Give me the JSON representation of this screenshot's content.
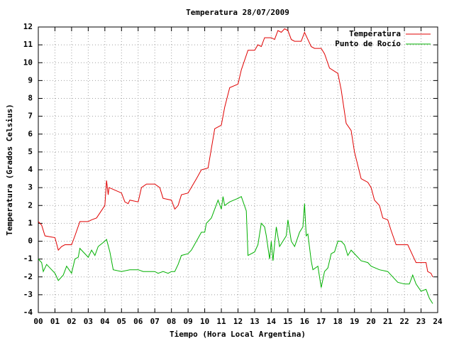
{
  "chart_data": {
    "type": "line",
    "title": "Temperatura 28/07/2009",
    "xlabel": "Tiempo (Hora Local Argentina)",
    "ylabel": "Temperatura (Grados Celsius)",
    "xlim": [
      0,
      24
    ],
    "ylim": [
      -4,
      12
    ],
    "xticks": [
      {
        "value": 0,
        "label": "00"
      },
      {
        "value": 1,
        "label": "01"
      },
      {
        "value": 2,
        "label": "02"
      },
      {
        "value": 3,
        "label": "03"
      },
      {
        "value": 4,
        "label": "04"
      },
      {
        "value": 5,
        "label": "05"
      },
      {
        "value": 6,
        "label": "06"
      },
      {
        "value": 7,
        "label": "07"
      },
      {
        "value": 8,
        "label": "08"
      },
      {
        "value": 9,
        "label": "09"
      },
      10,
      11,
      12,
      13,
      14,
      15,
      16,
      17,
      18,
      19,
      20,
      21,
      22,
      23,
      24
    ],
    "yticks": [
      -4,
      -3,
      -2,
      -1,
      0,
      1,
      2,
      3,
      4,
      5,
      6,
      7,
      8,
      9,
      10,
      11,
      12
    ],
    "grid": true,
    "legend": "top-right",
    "series": [
      {
        "name": "Temperatura",
        "color": "#e00000",
        "x": [
          0,
          0.2,
          0.4,
          1.0,
          1.2,
          1.4,
          1.6,
          2.0,
          2.2,
          2.5,
          3.0,
          3.2,
          3.5,
          4.0,
          4.1,
          4.2,
          4.25,
          4.5,
          5.0,
          5.2,
          5.4,
          5.5,
          6.0,
          6.2,
          6.5,
          7.0,
          7.3,
          7.5,
          8.0,
          8.2,
          8.4,
          8.6,
          9.0,
          9.5,
          9.8,
          10.2,
          10.6,
          11.0,
          11.2,
          11.5,
          12.0,
          12.2,
          12.6,
          13.0,
          13.2,
          13.4,
          13.6,
          14.0,
          14.2,
          14.4,
          14.6,
          14.8,
          15.0,
          15.2,
          15.4,
          15.6,
          15.8,
          16.0,
          16.2,
          16.4,
          16.6,
          17.0,
          17.2,
          17.5,
          18.0,
          18.2,
          18.5,
          18.8,
          19.0,
          19.4,
          19.8,
          20.0,
          20.2,
          20.5,
          20.7,
          21.0,
          21.2,
          21.5,
          22.0,
          22.2,
          22.5,
          22.7,
          23.0,
          23.3,
          23.4,
          23.6,
          23.7
        ],
        "values": [
          1.1,
          0.9,
          0.3,
          0.2,
          -0.5,
          -0.3,
          -0.2,
          -0.2,
          0.3,
          1.1,
          1.1,
          1.2,
          1.3,
          2.0,
          3.4,
          2.6,
          3.0,
          2.9,
          2.7,
          2.2,
          2.1,
          2.3,
          2.2,
          3.0,
          3.2,
          3.2,
          3.0,
          2.4,
          2.3,
          1.8,
          2.0,
          2.6,
          2.7,
          3.5,
          4.0,
          4.1,
          6.3,
          6.5,
          7.5,
          8.6,
          8.8,
          9.6,
          10.7,
          10.7,
          11.0,
          10.9,
          11.4,
          11.4,
          11.3,
          11.8,
          11.7,
          11.9,
          11.8,
          11.3,
          11.2,
          11.2,
          11.2,
          11.7,
          11.3,
          10.9,
          10.8,
          10.8,
          10.5,
          9.7,
          9.4,
          8.5,
          6.6,
          6.2,
          5.0,
          3.5,
          3.3,
          3.0,
          2.3,
          2.0,
          1.3,
          1.2,
          0.6,
          -0.2,
          -0.2,
          -0.2,
          -0.8,
          -1.2,
          -1.2,
          -1.2,
          -1.7,
          -1.8,
          -2.0
        ]
      },
      {
        "name": "Punto de Rocío",
        "color": "#00b000",
        "x": [
          0,
          0.2,
          0.3,
          0.5,
          0.8,
          1.0,
          1.2,
          1.5,
          1.7,
          2.0,
          2.2,
          2.4,
          2.5,
          2.7,
          3.0,
          3.2,
          3.4,
          3.6,
          4.0,
          4.1,
          4.3,
          4.5,
          5.0,
          5.5,
          6.0,
          6.3,
          6.6,
          7.0,
          7.2,
          7.5,
          7.8,
          8.0,
          8.2,
          8.4,
          8.6,
          9.0,
          9.2,
          9.5,
          9.8,
          10.0,
          10.1,
          10.4,
          10.6,
          10.8,
          11.0,
          11.1,
          11.2,
          11.5,
          12.0,
          12.2,
          12.5,
          12.6,
          13.0,
          13.2,
          13.4,
          13.6,
          13.7,
          13.9,
          14.0,
          14.1,
          14.3,
          14.5,
          14.7,
          14.9,
          15.0,
          15.2,
          15.4,
          15.7,
          15.9,
          16.0,
          16.1,
          16.2,
          16.4,
          16.5,
          16.8,
          17.0,
          17.2,
          17.4,
          17.6,
          17.8,
          18.0,
          18.2,
          18.4,
          18.6,
          18.8,
          19.0,
          19.4,
          19.8,
          20.0,
          20.5,
          21.0,
          21.3,
          21.6,
          22.0,
          22.3,
          22.5,
          22.7,
          23.0,
          23.3,
          23.5,
          23.7
        ],
        "values": [
          -1.0,
          -1.2,
          -1.7,
          -1.3,
          -1.6,
          -1.8,
          -2.2,
          -1.9,
          -1.4,
          -1.8,
          -1.0,
          -0.9,
          -0.4,
          -0.6,
          -0.9,
          -0.5,
          -0.8,
          -0.3,
          0.0,
          0.1,
          -0.6,
          -1.6,
          -1.7,
          -1.6,
          -1.6,
          -1.7,
          -1.7,
          -1.7,
          -1.8,
          -1.7,
          -1.8,
          -1.7,
          -1.7,
          -1.3,
          -0.8,
          -0.7,
          -0.5,
          0.0,
          0.5,
          0.5,
          1.0,
          1.3,
          1.8,
          2.3,
          1.8,
          2.5,
          2.0,
          2.2,
          2.4,
          2.5,
          1.7,
          -0.8,
          -0.6,
          -0.2,
          1.0,
          0.8,
          0.3,
          -1.0,
          0.0,
          -1.1,
          0.8,
          -0.3,
          0.0,
          0.3,
          1.2,
          0.0,
          -0.3,
          0.5,
          0.8,
          2.1,
          0.3,
          0.4,
          -1.1,
          -1.6,
          -1.4,
          -2.6,
          -1.7,
          -1.5,
          -0.7,
          -0.6,
          0.0,
          0.0,
          -0.2,
          -0.8,
          -0.5,
          -0.7,
          -1.1,
          -1.2,
          -1.4,
          -1.6,
          -1.7,
          -2.0,
          -2.3,
          -2.4,
          -2.4,
          -1.9,
          -2.4,
          -2.8,
          -2.7,
          -3.2,
          -3.5
        ]
      }
    ]
  }
}
